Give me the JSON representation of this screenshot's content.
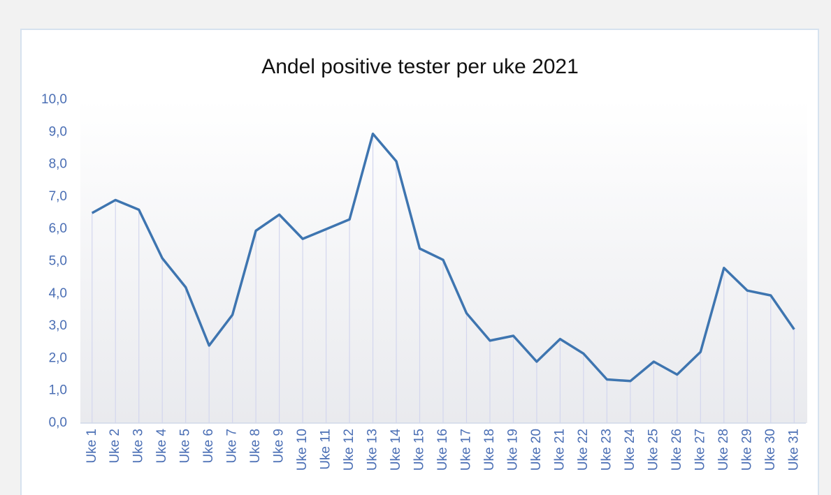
{
  "chart_data": {
    "type": "line",
    "title": "Andel positive tester per uke 2021",
    "categories": [
      "Uke 1",
      "Uke 2",
      "Uke 3",
      "Uke 4",
      "Uke 5",
      "Uke 6",
      "Uke 7",
      "Uke 8",
      "Uke 9",
      "Uke 10",
      "Uke 11",
      "Uke 12",
      "Uke 13",
      "Uke 14",
      "Uke 15",
      "Uke 16",
      "Uke 17",
      "Uke 18",
      "Uke 19",
      "Uke 20",
      "Uke 21",
      "Uke 22",
      "Uke 23",
      "Uke 24",
      "Uke 25",
      "Uke 26",
      "Uke 27",
      "Uke 28",
      "Uke 29",
      "Uke 30",
      "Uke 31"
    ],
    "values": [
      6.5,
      6.9,
      6.6,
      5.1,
      4.2,
      2.4,
      3.35,
      5.95,
      6.45,
      5.7,
      6.0,
      6.3,
      8.95,
      8.1,
      5.4,
      5.05,
      3.4,
      2.55,
      2.7,
      1.9,
      2.6,
      2.15,
      1.35,
      1.3,
      1.9,
      1.5,
      2.2,
      4.8,
      4.1,
      3.95,
      2.9
    ],
    "color": "#3e75b0",
    "drop_lines": true,
    "ylim": [
      0,
      10
    ],
    "yticks": [
      {
        "value": 0,
        "label": "0,0"
      },
      {
        "value": 1,
        "label": "1,0"
      },
      {
        "value": 2,
        "label": "2,0"
      },
      {
        "value": 3,
        "label": "3,0"
      },
      {
        "value": 4,
        "label": "4,0"
      },
      {
        "value": 5,
        "label": "5,0"
      },
      {
        "value": 6,
        "label": "6,0"
      },
      {
        "value": 7,
        "label": "7,0"
      },
      {
        "value": 8,
        "label": "8,0"
      },
      {
        "value": 9,
        "label": "9,0"
      },
      {
        "value": 10,
        "label": "10,0"
      }
    ],
    "grid": false
  }
}
